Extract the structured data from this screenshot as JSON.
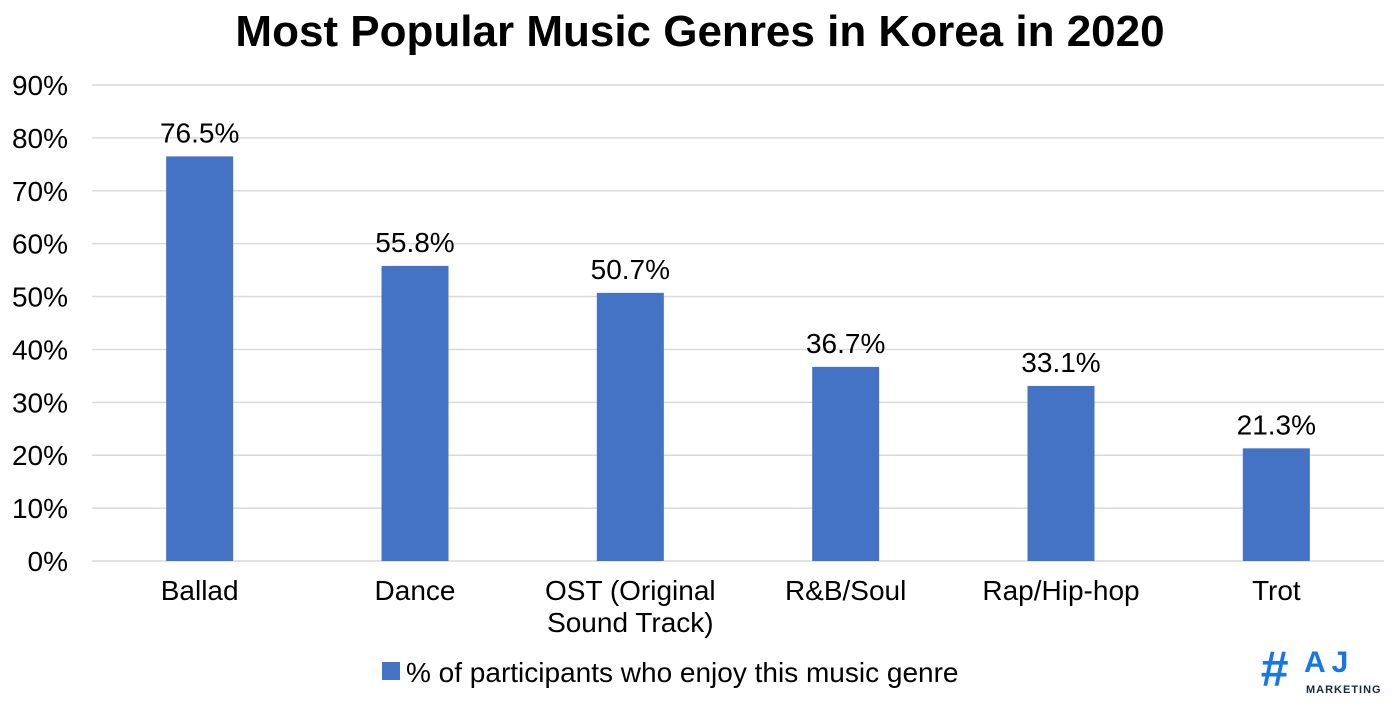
{
  "colors": {
    "bar": "#4472C4",
    "grid": "#D9D9D9",
    "text": "#000000",
    "logo_blue": "#1877E6",
    "logo_dark": "#1A2A3A"
  },
  "chart_data": {
    "type": "bar",
    "title": "Most Popular Music Genres in Korea in 2020",
    "xlabel": "",
    "ylabel": "",
    "ylim": [
      0,
      90
    ],
    "yticks": [
      "0%",
      "10%",
      "20%",
      "30%",
      "40%",
      "50%",
      "60%",
      "70%",
      "80%",
      "90%"
    ],
    "grid": true,
    "legend_position": "bottom",
    "categories": [
      [
        "Ballad"
      ],
      [
        "Dance"
      ],
      [
        "OST (Original",
        "Sound Track)"
      ],
      [
        "R&B/Soul"
      ],
      [
        "Rap/Hip-hop"
      ],
      [
        "Trot"
      ]
    ],
    "series": [
      {
        "name": "% of participants who enjoy this music genre",
        "values": [
          76.5,
          55.8,
          50.7,
          36.7,
          33.1,
          21.3
        ],
        "labels": [
          "76.5%",
          "55.8%",
          "50.7%",
          "36.7%",
          "33.1%",
          "21.3%"
        ]
      }
    ]
  },
  "logo": {
    "symbol": "#",
    "letters": "AJ",
    "subtitle": "MARKETING"
  }
}
